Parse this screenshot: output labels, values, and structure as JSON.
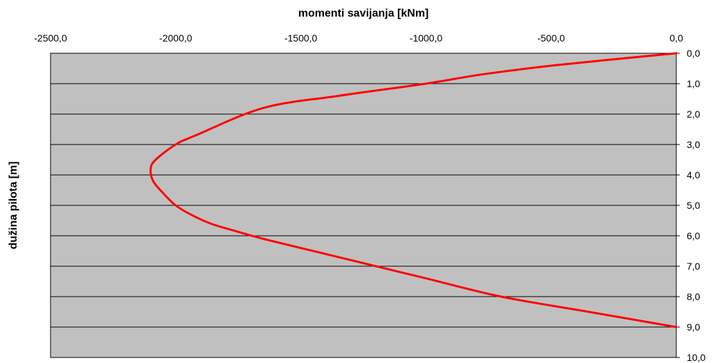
{
  "chart_data": {
    "type": "line",
    "title": "momenti savijanja [kNm]",
    "xlabel": "momenti savijanja [kNm]",
    "ylabel": "dužina pilota [m]",
    "xlim": [
      -2500,
      0
    ],
    "ylim": [
      0,
      10
    ],
    "y_inverted": true,
    "x_axis_position": "top",
    "y_axis_position": "right",
    "x_ticks": [
      "-2500,0",
      "-2000,0",
      "-1500,0",
      "-1000,0",
      "-500,0",
      "0,0"
    ],
    "x_tick_values": [
      -2500,
      -2000,
      -1500,
      -1000,
      -500,
      0
    ],
    "y_ticks": [
      "0,0",
      "1,0",
      "2,0",
      "3,0",
      "4,0",
      "5,0",
      "6,0",
      "7,0",
      "8,0",
      "9,0",
      "10,0"
    ],
    "y_tick_values": [
      0,
      1,
      2,
      3,
      4,
      5,
      6,
      7,
      8,
      9,
      10
    ],
    "grid": "horizontal",
    "plot_background": "#c0c0c0",
    "line_color": "#ff0000",
    "series": [
      {
        "x": [
          0,
          -490,
          -780,
          -1000,
          -1350,
          -1650,
          -1920,
          -2000,
          -2080,
          -2100,
          -2090,
          -2050,
          -2000,
          -1940,
          -1860,
          -1780,
          -1650,
          -1400,
          -1300,
          -1000,
          -700,
          -350,
          0
        ],
        "y": [
          0,
          0.4,
          0.7,
          1.0,
          1.4,
          1.8,
          2.7,
          3.0,
          3.5,
          3.8,
          4.2,
          4.6,
          5.0,
          5.3,
          5.6,
          5.8,
          6.1,
          6.6,
          6.8,
          7.4,
          8.0,
          8.5,
          9.0
        ]
      }
    ]
  }
}
